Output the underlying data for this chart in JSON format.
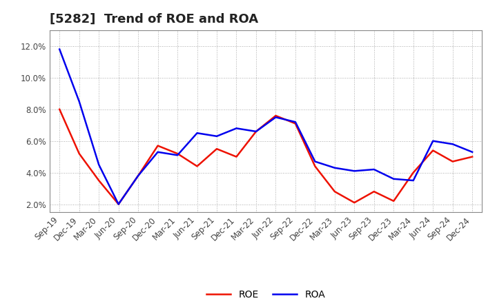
{
  "title": "[5282]  Trend of ROE and ROA",
  "labels": [
    "Sep-19",
    "Dec-19",
    "Mar-20",
    "Jun-20",
    "Sep-20",
    "Dec-20",
    "Mar-21",
    "Jun-21",
    "Sep-21",
    "Dec-21",
    "Mar-22",
    "Jun-22",
    "Sep-22",
    "Dec-22",
    "Mar-23",
    "Jun-23",
    "Sep-23",
    "Dec-23",
    "Mar-24",
    "Jun-24",
    "Sep-24",
    "Dec-24"
  ],
  "ROE": [
    8.0,
    5.2,
    3.5,
    2.0,
    3.8,
    5.7,
    5.2,
    4.4,
    5.5,
    5.0,
    6.6,
    7.6,
    7.1,
    4.4,
    2.8,
    2.1,
    2.8,
    2.2,
    4.0,
    5.4,
    4.7,
    5.0
  ],
  "ROA": [
    11.8,
    8.5,
    4.5,
    2.0,
    3.8,
    5.3,
    5.1,
    6.5,
    6.3,
    6.8,
    6.6,
    7.5,
    7.2,
    4.7,
    4.3,
    4.1,
    4.2,
    3.6,
    3.5,
    6.0,
    5.8,
    5.3
  ],
  "ROE_color": "#EE1100",
  "ROA_color": "#0000EE",
  "bg_color": "#FFFFFF",
  "plot_bg_color": "#FFFFFF",
  "grid_color": "#AAAAAA",
  "spine_color": "#888888",
  "ylim": [
    1.5,
    13.0
  ],
  "yticks": [
    2.0,
    4.0,
    6.0,
    8.0,
    10.0,
    12.0
  ],
  "title_fontsize": 13,
  "tick_fontsize": 8.5,
  "legend_fontsize": 10,
  "line_width": 1.8
}
